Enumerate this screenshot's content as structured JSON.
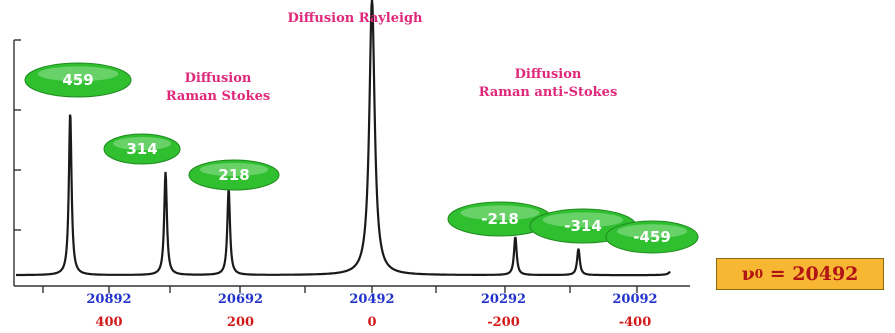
{
  "chart_data": {
    "type": "line",
    "title": "Diffusion  Rayleigh",
    "xlabel": "",
    "ylabel": "",
    "x_ticks_wavenumber": [
      "20892",
      "20692",
      "20492",
      "20292",
      "20092"
    ],
    "x_ticks_shift": [
      "400",
      "200",
      "0",
      "-200",
      "-400"
    ],
    "xlim": [
      500,
      -500
    ],
    "ylim": [
      0,
      1
    ],
    "peaks": [
      {
        "shift": 459,
        "label": "459",
        "height": 0.68
      },
      {
        "shift": 314,
        "label": "314",
        "height": 0.43
      },
      {
        "shift": 218,
        "label": "218",
        "height": 0.36
      },
      {
        "shift": 0,
        "label": "",
        "height": 1.15
      },
      {
        "shift": -218,
        "label": "-218",
        "height": 0.16
      },
      {
        "shift": -314,
        "label": "-314",
        "height": 0.11
      },
      {
        "shift": -459,
        "label": "-459",
        "height": 0.1
      }
    ],
    "annotations": {
      "stokes_line1": "Diffusion",
      "stokes_line2": "Raman Stokes",
      "anti_line1": "Diffusion",
      "anti_line2": "Raman anti-Stokes"
    },
    "nu_label": "ν",
    "nu_sub": "0",
    "nu_value": "= 20492",
    "colors": {
      "curve": "#1a1a1a",
      "bubble": "#2fbf2f",
      "pink": "#e0287a",
      "blue": "#2233cc",
      "red": "#d11a1a",
      "box": "#f7b733"
    }
  }
}
